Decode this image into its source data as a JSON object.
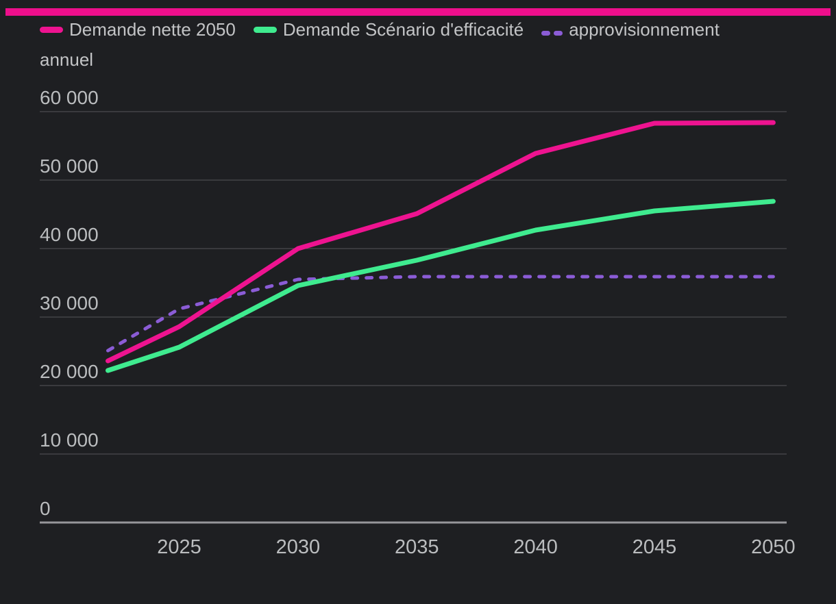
{
  "accent_bar_color": "#EE0F8C",
  "background_color": "#1E1F22",
  "gridline_color": "#56565A",
  "zero_axis_color": "#96969A",
  "tick_text_color": "#BBBDBF",
  "legend_text_color": "#C3C4C6",
  "chart_data": {
    "type": "line",
    "title": "",
    "xlabel": "",
    "ylabel": "",
    "x": [
      2022,
      2025,
      2030,
      2035,
      2040,
      2045,
      2050
    ],
    "x_range": [
      2022,
      2050
    ],
    "ylim": [
      0,
      60000
    ],
    "grid": true,
    "legend_position": "top",
    "series": [
      {
        "name": "Demande nette 2050",
        "color": "#EE1390",
        "style": "solid",
        "values": [
          23600,
          28600,
          40000,
          45100,
          53900,
          58300,
          58400
        ]
      },
      {
        "name": "Demande Scénario d'efficacité",
        "color": "#3FEB8F",
        "style": "solid",
        "values": [
          22200,
          25600,
          34600,
          38300,
          42700,
          45500,
          46900
        ]
      },
      {
        "name": "approvisionnement annuel",
        "color": "#8B5CD6",
        "style": "dashed",
        "values": [
          25100,
          31200,
          35500,
          35900,
          35900,
          35900,
          35900
        ]
      }
    ],
    "ytick_values": [
      0,
      10000,
      20000,
      30000,
      40000,
      50000,
      60000
    ],
    "ytick_labels": [
      "0",
      "10 000",
      "20 000",
      "30 000",
      "40 000",
      "50 000",
      "60 000"
    ],
    "xtick_values": [
      2025,
      2030,
      2035,
      2040,
      2045,
      2050
    ],
    "xtick_labels": [
      "2025",
      "2030",
      "2035",
      "2040",
      "2045",
      "2050"
    ]
  }
}
